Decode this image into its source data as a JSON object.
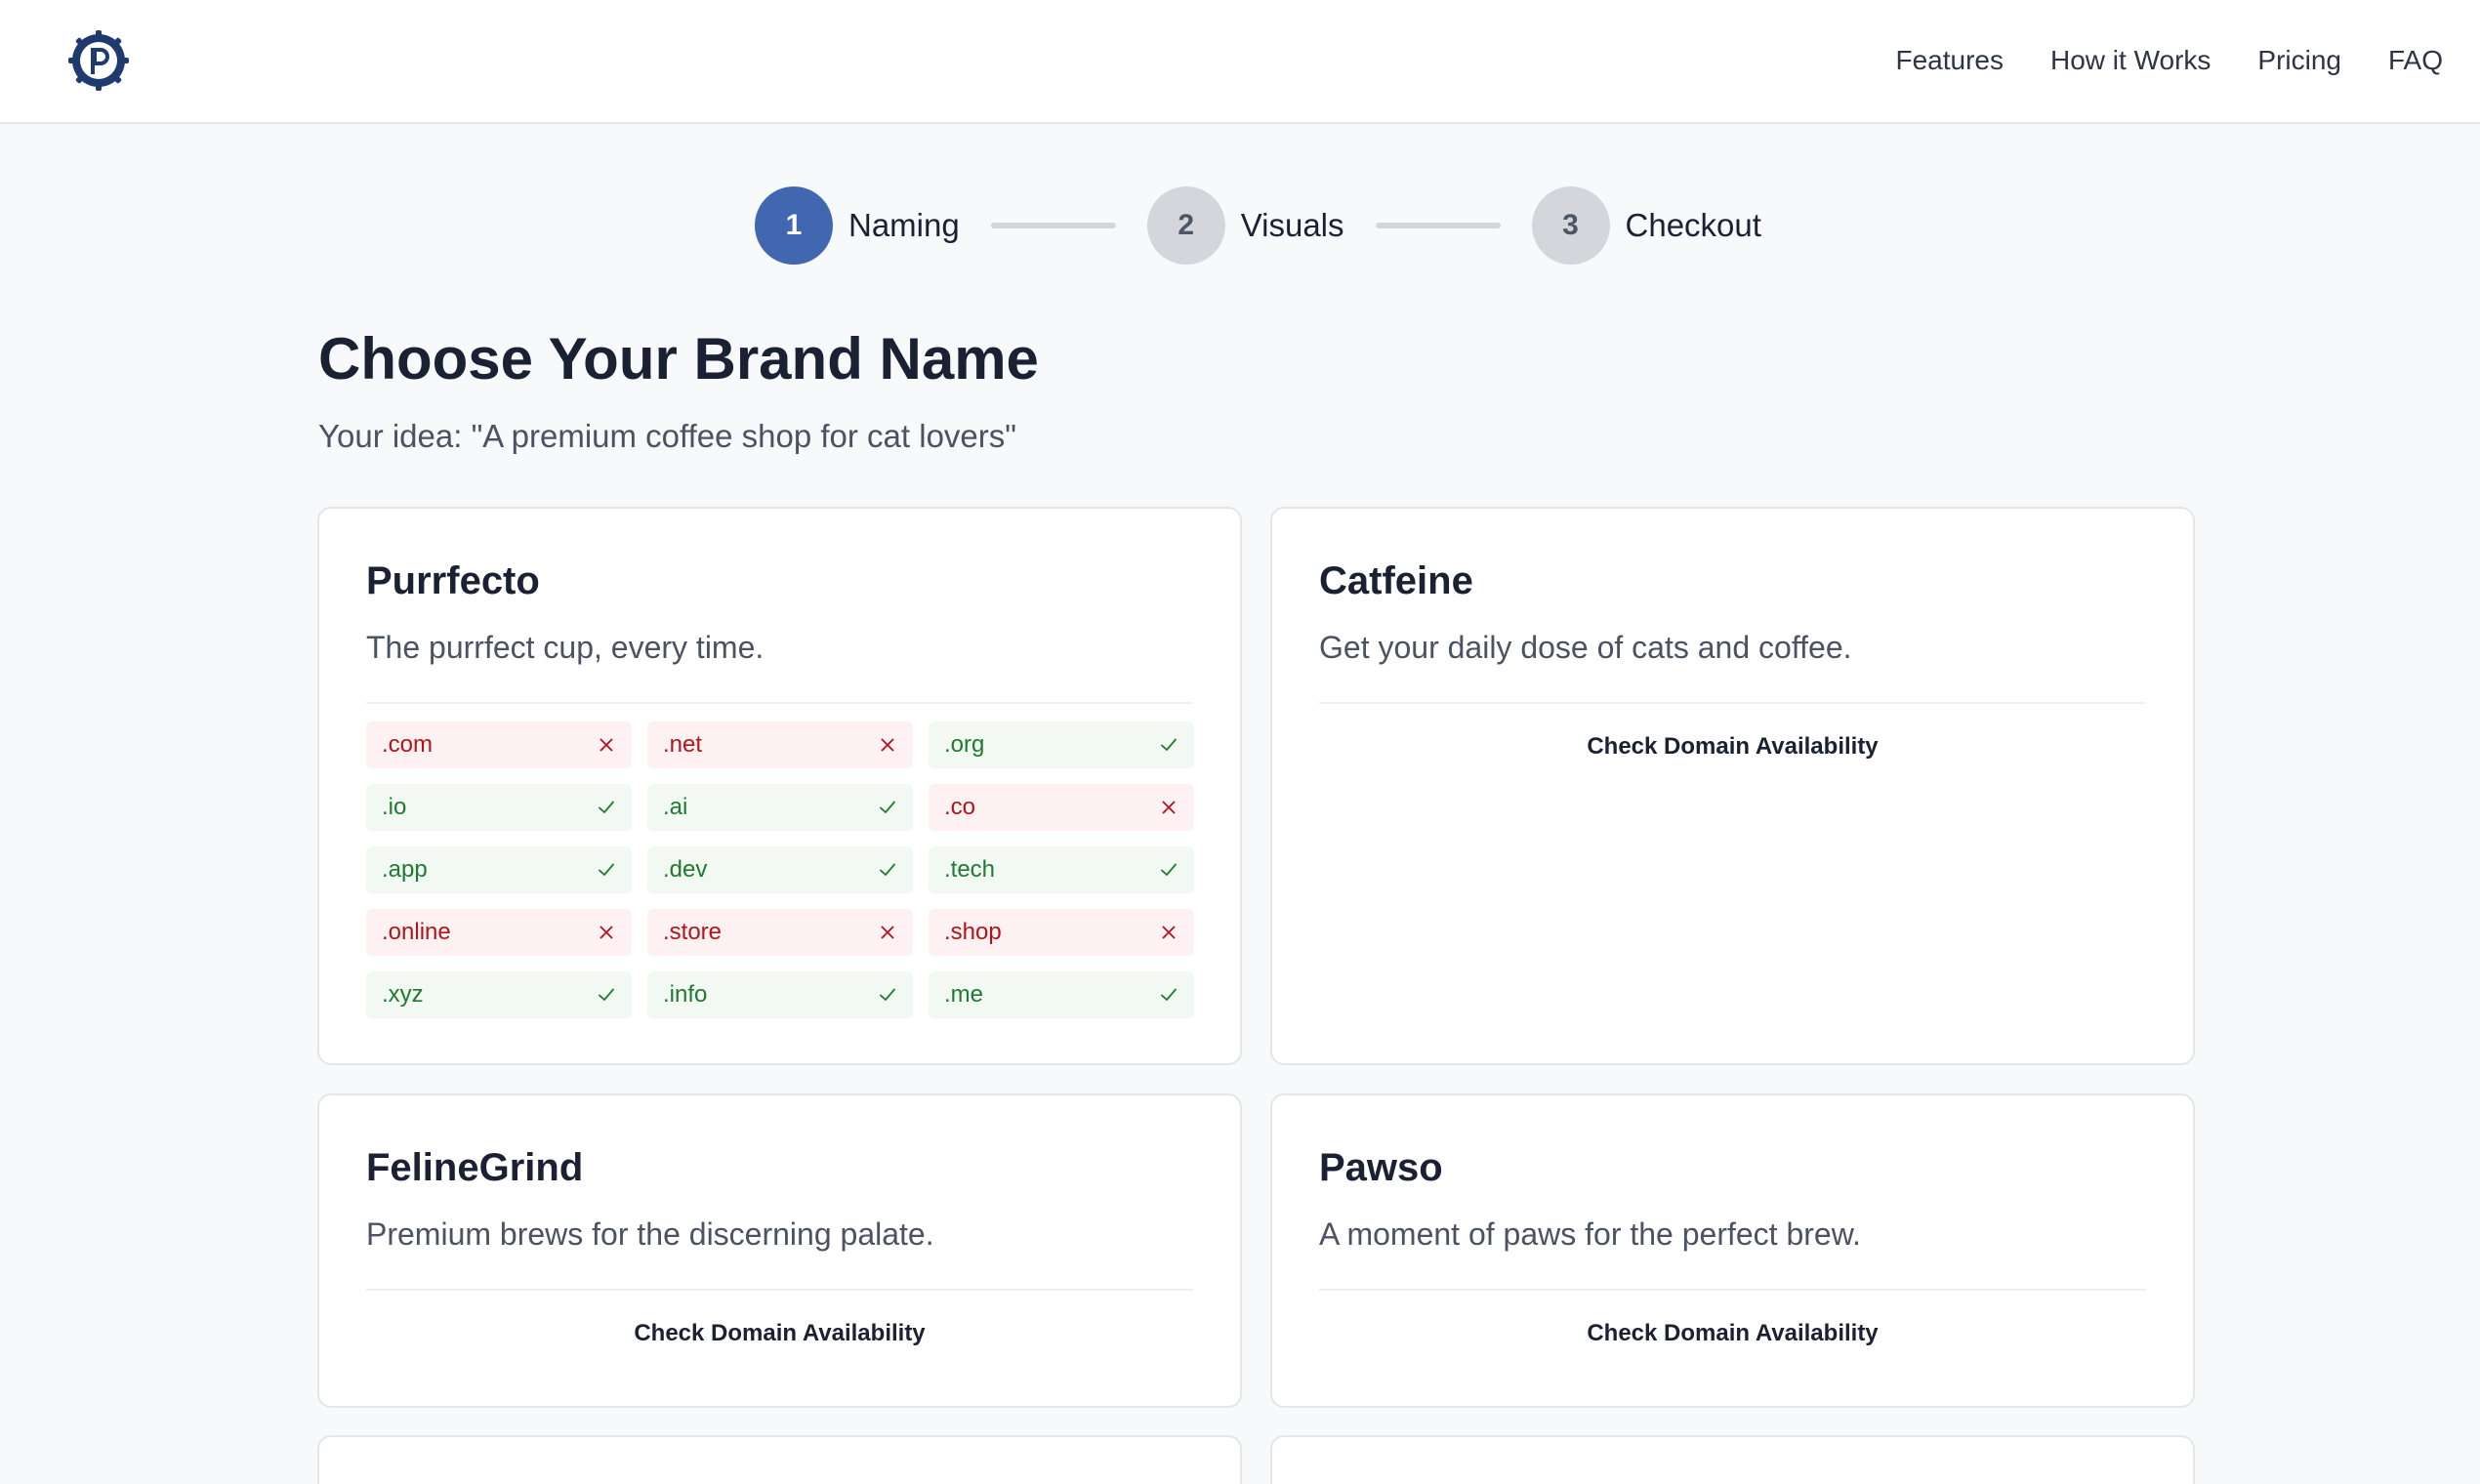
{
  "nav": {
    "items": [
      "Features",
      "How it Works",
      "Pricing",
      "FAQ"
    ]
  },
  "stepper": {
    "steps": [
      {
        "number": "1",
        "label": "Naming"
      },
      {
        "number": "2",
        "label": "Visuals"
      },
      {
        "number": "3",
        "label": "Checkout"
      }
    ],
    "active_step": 1
  },
  "page": {
    "title": "Choose Your Brand Name",
    "subtitle": "Your idea: \"A premium coffee shop for cat lovers\""
  },
  "cards": [
    {
      "name": "Purrfecto",
      "tagline": "The purrfect cup, every time.",
      "domains": [
        {
          "tld": ".com",
          "available": false
        },
        {
          "tld": ".net",
          "available": false
        },
        {
          "tld": ".org",
          "available": true
        },
        {
          "tld": ".io",
          "available": true
        },
        {
          "tld": ".ai",
          "available": true
        },
        {
          "tld": ".co",
          "available": false
        },
        {
          "tld": ".app",
          "available": true
        },
        {
          "tld": ".dev",
          "available": true
        },
        {
          "tld": ".tech",
          "available": true
        },
        {
          "tld": ".online",
          "available": false
        },
        {
          "tld": ".store",
          "available": false
        },
        {
          "tld": ".shop",
          "available": false
        },
        {
          "tld": ".xyz",
          "available": true
        },
        {
          "tld": ".info",
          "available": true
        },
        {
          "tld": ".me",
          "available": true
        }
      ]
    },
    {
      "name": "Catfeine",
      "tagline": "Get your daily dose of cats and coffee.",
      "check_label": "Check Domain Availability"
    },
    {
      "name": "FelineGrind",
      "tagline": "Premium brews for the discerning palate.",
      "check_label": "Check Domain Availability"
    },
    {
      "name": "Pawso",
      "tagline": "A moment of paws for the perfect brew.",
      "check_label": "Check Domain Availability"
    }
  ],
  "colors": {
    "accent": "#4167b0",
    "taken_bg": "#fdf1f1",
    "taken_text": "#b3141c",
    "available_bg": "#f1f9f2",
    "available_text": "#1f7a30"
  },
  "icons": {
    "logo": "gear-badge-logo-icon",
    "taken": "x-icon",
    "available": "check-icon"
  }
}
